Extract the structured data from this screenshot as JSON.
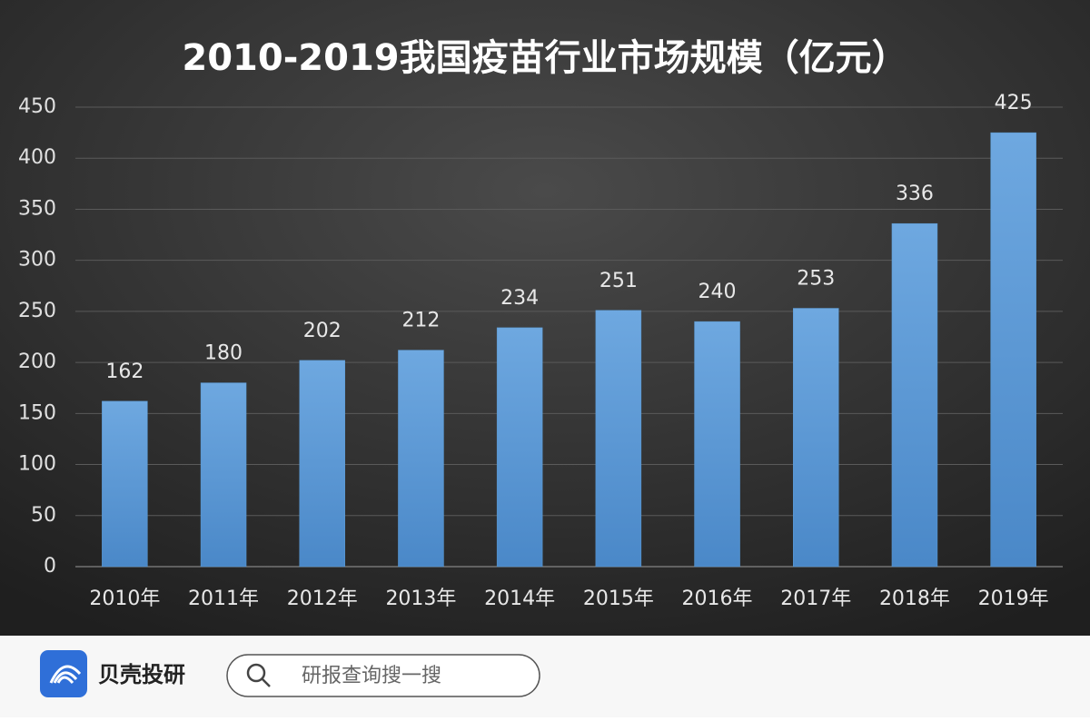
{
  "chart_data": {
    "type": "bar",
    "title": "2010-2019我国疫苗行业市场规模（亿元）",
    "categories": [
      "2010年",
      "2011年",
      "2012年",
      "2013年",
      "2014年",
      "2015年",
      "2016年",
      "2017年",
      "2018年",
      "2019年"
    ],
    "values": [
      162,
      180,
      202,
      212,
      234,
      251,
      240,
      253,
      336,
      425
    ],
    "color": "#5b9bd5",
    "ylim": [
      0,
      450
    ],
    "yticks": [
      0,
      50,
      100,
      150,
      200,
      250,
      300,
      350,
      400,
      450
    ],
    "grid": true
  },
  "footer": {
    "brand": "贝壳投研",
    "search_placeholder": "研报查询搜一搜"
  }
}
